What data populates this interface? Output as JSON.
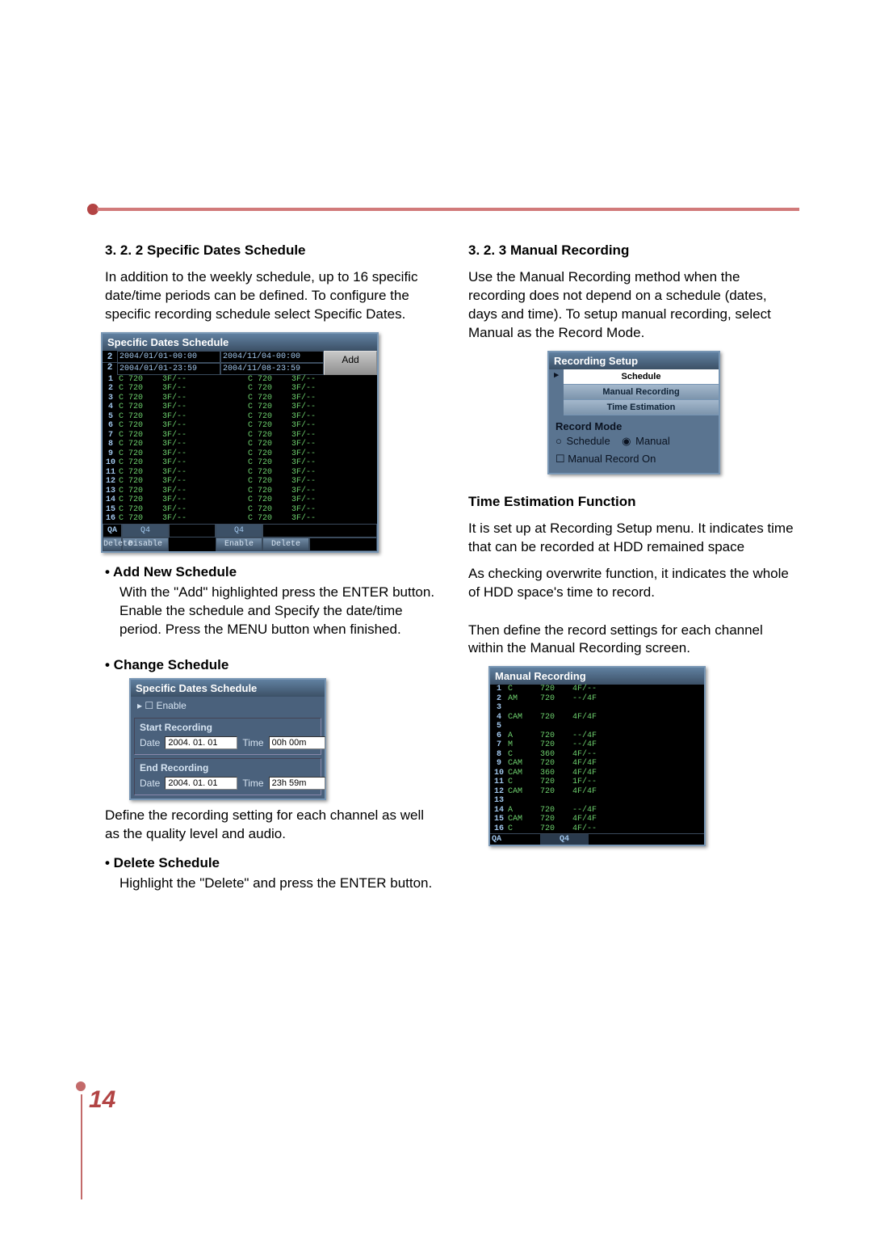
{
  "left": {
    "heading": "3. 2. 2 Specific Dates Schedule",
    "intro": "In addition to the weekly schedule, up to 16 specific date/time periods can be defined. To configure the specific recording schedule select Specific Dates.",
    "panel1": {
      "title": "Specific Dates Schedule",
      "topNum": "2",
      "dates": [
        "2004/01/01-00:00",
        "2004/11/04-00:00",
        "2004/01/01-23:59",
        "2004/11/08-23:59"
      ],
      "addLabel": "Add",
      "rows": [
        "1",
        "2",
        "3",
        "4",
        "5",
        "6",
        "7",
        "8",
        "9",
        "10",
        "11",
        "12",
        "13",
        "14",
        "15",
        "16"
      ],
      "cellL": "C 720    3F/--",
      "cellR": "C 720    3F/--",
      "bottom": {
        "qa": "QA",
        "q4": "Q4",
        "disable": "Disable",
        "delete": "Delete",
        "enable": "Enable",
        "delete2": "Delete"
      }
    },
    "add": {
      "head": "•  Add New Schedule",
      "body": "With the \"Add\" highlighted press the ENTER button. Enable the schedule and Specify the date/time period. Press the MENU button when finished."
    },
    "change": {
      "head": "•  Change Schedule",
      "panel": {
        "title": "Specific Dates Schedule",
        "enable": "Enable",
        "start": "Start Recording",
        "end": "End Recording",
        "dateLabel": "Date",
        "timeLabel": "Time",
        "date1": "2004. 01. 01",
        "time1": "00h 00m",
        "date2": "2004. 01. 01",
        "time2": "23h 59m"
      },
      "body": "Define the recording setting for each channel as well as the quality level and audio."
    },
    "delete": {
      "head": "•  Delete Schedule",
      "body": "Highlight the \"Delete\" and press the ENTER button."
    }
  },
  "right": {
    "heading": "3. 2. 3 Manual Recording",
    "intro": "Use the Manual Recording method when the recording does not depend on a schedule (dates, days and time). To setup manual recording, select Manual as the Record Mode.",
    "rs": {
      "title": "Recording Setup",
      "schedule": "Schedule",
      "manrec": "Manual Recording",
      "timeest": "Time Estimation",
      "recmode": "Record Mode",
      "optSchedule": "Schedule",
      "optManual": "Manual",
      "manon": "Manual Record On"
    },
    "timeEst": {
      "head": "Time Estimation Function",
      "p1": "It is set up at Recording Setup menu. It indicates time that can be recorded at HDD remained space",
      "p2": "As checking overwrite function, it indicates the whole of HDD space's time to record.",
      "p3": "Then define the record settings for each channel within the Manual Recording screen."
    },
    "mr": {
      "title": "Manual Recording",
      "rows": [
        {
          "n": "1",
          "a": "C",
          "b": "720",
          "c": "4F/--"
        },
        {
          "n": "2",
          "a": "AM",
          "b": "720",
          "c": "--/4F"
        },
        {
          "n": "3",
          "a": "",
          "b": "",
          "c": ""
        },
        {
          "n": "4",
          "a": "CAM",
          "b": "720",
          "c": "4F/4F"
        },
        {
          "n": "5",
          "a": "",
          "b": "",
          "c": ""
        },
        {
          "n": "6",
          "a": "A",
          "b": "720",
          "c": "--/4F"
        },
        {
          "n": "7",
          "a": "M",
          "b": "720",
          "c": "--/4F"
        },
        {
          "n": "8",
          "a": "C",
          "b": "360",
          "c": "4F/--"
        },
        {
          "n": "9",
          "a": "CAM",
          "b": "720",
          "c": "4F/4F"
        },
        {
          "n": "10",
          "a": "CAM",
          "b": "360",
          "c": "4F/4F"
        },
        {
          "n": "11",
          "a": "C",
          "b": "720",
          "c": "1F/--"
        },
        {
          "n": "12",
          "a": "CAM",
          "b": "720",
          "c": "4F/4F"
        },
        {
          "n": "13",
          "a": "",
          "b": "",
          "c": ""
        },
        {
          "n": "14",
          "a": "A",
          "b": "720",
          "c": "--/4F"
        },
        {
          "n": "15",
          "a": "CAM",
          "b": "720",
          "c": "4F/4F"
        },
        {
          "n": "16",
          "a": "C",
          "b": "720",
          "c": "4F/--"
        }
      ],
      "qa": "QA",
      "q4": "Q4"
    }
  },
  "pageNumber": "14"
}
